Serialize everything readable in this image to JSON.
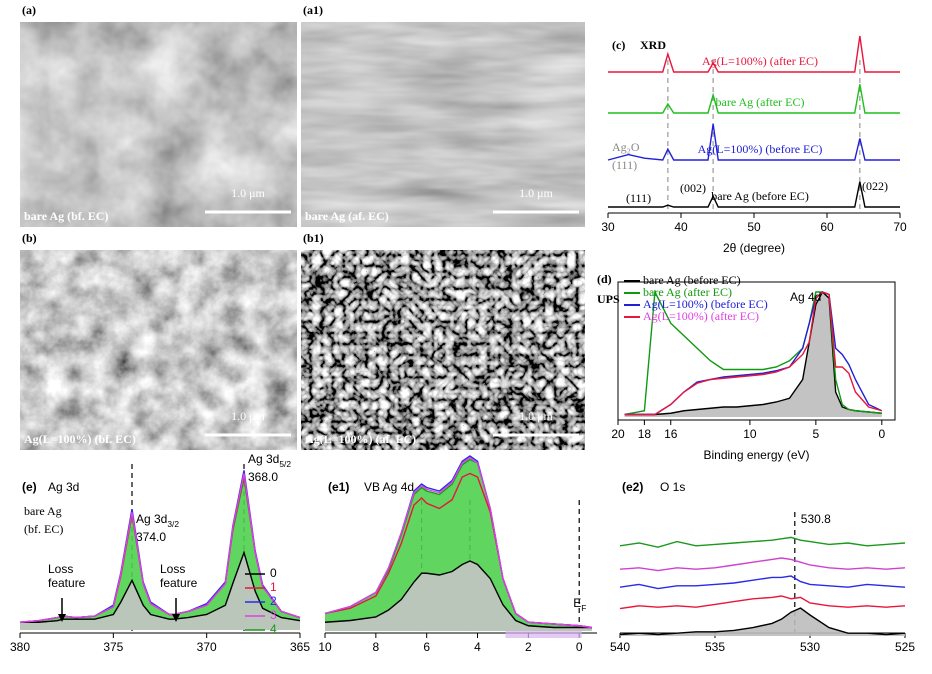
{
  "images": [
    {
      "label": "(a)",
      "caption": "bare Ag (bf. EC)",
      "scale": "1.0 μm"
    },
    {
      "label": "(a1)",
      "caption": "bare Ag (af. EC)",
      "scale": "1.0 μm"
    },
    {
      "label": "(b)",
      "caption": "Ag(L=100%) (bf. EC)",
      "scale": "1.0 μm"
    },
    {
      "label": "(b1)",
      "caption": "Ag(L=100%) (af. EC)",
      "scale": "1.0 μm"
    }
  ],
  "chart_data": [
    {
      "type": "line",
      "panel": "(c)",
      "title": "XRD",
      "xlabel": "2θ (degree)",
      "x": [
        30,
        32.8,
        35,
        37.5,
        38.2,
        39,
        43.7,
        44.4,
        45.1,
        50,
        60,
        63.8,
        64.5,
        65.2,
        70
      ],
      "xlim": [
        30,
        70
      ],
      "xticks": [
        30,
        40,
        50,
        60,
        70
      ],
      "guides": [
        38.2,
        44.4,
        64.5
      ],
      "annotations": [
        "Ag₂O",
        "(111)",
        "(111)",
        "(002)",
        "(022)"
      ],
      "series": [
        {
          "name": "Ag(L=100%) (after EC)",
          "color": "#e8163c",
          "values": [
            0,
            0,
            0,
            0,
            0.5,
            0,
            0,
            0.25,
            0,
            0,
            0,
            0,
            1,
            0,
            0
          ]
        },
        {
          "name": "bare Ag (after EC)",
          "color": "#1fbf1f",
          "values": [
            0,
            0,
            0,
            0,
            0.25,
            0,
            0,
            0.5,
            0,
            0,
            0,
            0,
            0.8,
            0,
            0
          ]
        },
        {
          "name": "Ag(L=100%) (before EC)",
          "color": "#2020d8",
          "values": [
            0,
            0.15,
            0.05,
            0,
            0.3,
            0,
            0,
            1,
            0,
            0,
            0,
            0,
            0.6,
            0,
            0
          ]
        },
        {
          "name": "bare Ag (before EC)",
          "color": "#000000",
          "values": [
            0,
            0,
            0,
            0,
            0.05,
            0,
            0,
            0.3,
            0,
            0,
            0,
            0,
            0.7,
            0,
            0
          ]
        }
      ]
    },
    {
      "type": "line",
      "panel": "(d)",
      "title": "UPS",
      "xlabel": "Binding energy (eV)",
      "annotations": [
        "Ag 4d"
      ],
      "x": [
        19.5,
        18,
        17.2,
        16,
        15,
        14,
        13,
        12,
        11,
        10,
        9,
        8,
        7,
        6,
        5.5,
        5,
        4.5,
        4,
        3.5,
        3,
        2.5,
        2,
        1,
        0
      ],
      "xlim": [
        20,
        -1
      ],
      "xticks": [
        20,
        18,
        16,
        10,
        5,
        0
      ],
      "series": [
        {
          "name": "bare Ag (before EC)",
          "color": "#000000",
          "fill": "#bdbdbd",
          "values": [
            0.02,
            0.02,
            0.02,
            0.03,
            0.05,
            0.06,
            0.07,
            0.08,
            0.08,
            0.09,
            0.1,
            0.12,
            0.15,
            0.3,
            0.6,
            0.9,
            1.0,
            0.95,
            0.2,
            0.08,
            0.06,
            0.05,
            0.04,
            0.03
          ]
        },
        {
          "name": "bare Ag (after EC)",
          "color": "#119911",
          "values": [
            0.02,
            0.05,
            1.0,
            0.75,
            0.65,
            0.55,
            0.45,
            0.38,
            0.38,
            0.38,
            0.38,
            0.4,
            0.45,
            0.55,
            0.75,
            1.0,
            1.0,
            0.98,
            0.3,
            0.1,
            0.06,
            0.05,
            0.04,
            0.03
          ]
        },
        {
          "name": "Ag(L=100%) (before EC)",
          "color": "#2020d8",
          "values": [
            0.02,
            0.02,
            0.02,
            0.1,
            0.2,
            0.28,
            0.3,
            0.32,
            0.33,
            0.34,
            0.35,
            0.37,
            0.4,
            0.55,
            0.75,
            0.95,
            1.0,
            0.98,
            0.55,
            0.5,
            0.42,
            0.3,
            0.1,
            0.05
          ]
        },
        {
          "name": "Ag(L=100%) (after EC)",
          "color": "#e8163c",
          "values": [
            0.02,
            0.02,
            0.02,
            0.1,
            0.2,
            0.27,
            0.3,
            0.31,
            0.32,
            0.33,
            0.34,
            0.36,
            0.4,
            0.5,
            0.6,
            0.95,
            1.0,
            0.98,
            0.4,
            0.4,
            0.35,
            0.2,
            0.08,
            0.05
          ]
        }
      ]
    },
    {
      "type": "line",
      "panel": "(e)",
      "title": "Ag 3d",
      "annotations": [
        "bare Ag",
        "(bf. EC)",
        "Loss\nfeature",
        "Loss\nfeature"
      ],
      "peaks": [
        {
          "name": {
            "text": "Ag 3d",
            "sub": "3/2"
          },
          "value": {
            "value": 374,
            "label": "374.0"
          }
        },
        {
          "name": {
            "text": "Ag 3d",
            "sub": "5/2"
          },
          "value": {
            "value": 368,
            "label": "368.0"
          }
        }
      ],
      "x": [
        380,
        379,
        378,
        377.7,
        377,
        376,
        375,
        374.6,
        374,
        373.4,
        373,
        372,
        371.8,
        371,
        370,
        369,
        368.6,
        368,
        367.4,
        367,
        366,
        365
      ],
      "xlim": [
        380,
        365
      ],
      "xticks": [
        380,
        375,
        370,
        365
      ],
      "series": [
        {
          "name": "4",
          "color": "#1a9a1a",
          "fill": "#4fd04f",
          "values": [
            0.05,
            0.06,
            0.08,
            0.09,
            0.08,
            0.09,
            0.15,
            0.35,
            0.74,
            0.3,
            0.17,
            0.1,
            0.1,
            0.12,
            0.16,
            0.3,
            0.64,
            0.98,
            0.5,
            0.28,
            0.12,
            0.08
          ]
        },
        {
          "name": "0",
          "color": "#000000",
          "fill": "#c4c4c4",
          "values": [
            0.05,
            0.05,
            0.06,
            0.07,
            0.07,
            0.07,
            0.1,
            0.18,
            0.32,
            0.16,
            0.1,
            0.07,
            0.07,
            0.08,
            0.1,
            0.16,
            0.3,
            0.5,
            0.25,
            0.14,
            0.08,
            0.06
          ]
        },
        {
          "name": "1",
          "color": "#e8163c",
          "values": [
            0.05,
            0.06,
            0.08,
            0.09,
            0.08,
            0.09,
            0.15,
            0.35,
            0.75,
            0.3,
            0.17,
            0.1,
            0.1,
            0.12,
            0.16,
            0.3,
            0.65,
            1.0,
            0.5,
            0.28,
            0.12,
            0.08
          ]
        },
        {
          "name": "2",
          "color": "#2a2ae8",
          "values": [
            0.05,
            0.06,
            0.08,
            0.09,
            0.08,
            0.09,
            0.16,
            0.37,
            0.78,
            0.31,
            0.18,
            0.1,
            0.1,
            0.12,
            0.17,
            0.31,
            0.67,
            1.03,
            0.51,
            0.29,
            0.12,
            0.08
          ]
        },
        {
          "name": "3",
          "color": "#e040e0",
          "values": [
            0.05,
            0.06,
            0.08,
            0.09,
            0.08,
            0.09,
            0.15,
            0.36,
            0.76,
            0.3,
            0.17,
            0.1,
            0.1,
            0.12,
            0.16,
            0.3,
            0.66,
            1.01,
            0.5,
            0.28,
            0.12,
            0.08
          ]
        }
      ]
    },
    {
      "type": "line",
      "panel": "(e1)",
      "title": "VB  Ag 4d",
      "edge": {
        "text": "E",
        "sub": "F"
      },
      "x": [
        10,
        9,
        8,
        7.5,
        7,
        6.5,
        6.2,
        6,
        5.5,
        5,
        4.6,
        4.3,
        4,
        3.5,
        3,
        2.5,
        2,
        1,
        0,
        -0.5
      ],
      "xlim": [
        10,
        -0.7
      ],
      "xticks": [
        10,
        8,
        6,
        4,
        2,
        0
      ],
      "guides": [
        6.2,
        4.3,
        0
      ],
      "series": [
        {
          "color": "#1a9a1a",
          "fill": "#4fd04f",
          "values": [
            0.1,
            0.14,
            0.22,
            0.35,
            0.55,
            0.78,
            0.82,
            0.8,
            0.78,
            0.84,
            0.95,
            0.98,
            0.96,
            0.7,
            0.3,
            0.1,
            0.05,
            0.04,
            0.03,
            0.02
          ]
        },
        {
          "color": "#000000",
          "fill": "#c4c4c4",
          "values": [
            0.05,
            0.06,
            0.08,
            0.12,
            0.18,
            0.28,
            0.33,
            0.33,
            0.32,
            0.34,
            0.38,
            0.4,
            0.38,
            0.3,
            0.15,
            0.06,
            0.03,
            0.02,
            0.02,
            0.02
          ]
        },
        {
          "color": "#e8163c",
          "values": [
            0.1,
            0.13,
            0.2,
            0.33,
            0.5,
            0.72,
            0.76,
            0.73,
            0.7,
            0.75,
            0.88,
            0.9,
            0.88,
            0.68,
            0.3,
            0.1,
            0.05,
            0.04,
            0.03,
            0.02
          ]
        },
        {
          "color": "#2a2ae8",
          "values": [
            0.1,
            0.14,
            0.22,
            0.36,
            0.56,
            0.8,
            0.84,
            0.82,
            0.8,
            0.86,
            0.97,
            1.0,
            0.97,
            0.7,
            0.3,
            0.1,
            0.05,
            0.04,
            0.03,
            0.02
          ]
        },
        {
          "color": "#e040e0",
          "values": [
            0.1,
            0.14,
            0.22,
            0.36,
            0.56,
            0.79,
            0.83,
            0.81,
            0.79,
            0.85,
            0.96,
            0.99,
            0.96,
            0.7,
            0.3,
            0.1,
            0.05,
            0.04,
            0.03,
            0.02
          ]
        }
      ]
    },
    {
      "type": "line",
      "panel": "(e2)",
      "title": "O 1s",
      "peak": 530.8,
      "x": [
        540,
        539,
        538,
        537,
        536,
        535,
        534,
        533,
        532,
        531.5,
        531,
        530.5,
        530,
        529,
        528,
        527,
        526,
        525
      ],
      "xlim": [
        540,
        525
      ],
      "xticks": [
        540,
        535,
        530,
        525
      ],
      "series": [
        {
          "color": "#1a9a1a",
          "values": [
            0.3,
            0.5,
            0.2,
            0.6,
            0.3,
            0.4,
            0.5,
            0.6,
            0.7,
            0.8,
            0.9,
            0.7,
            0.6,
            0.4,
            0.5,
            0.3,
            0.4,
            0.5
          ]
        },
        {
          "color": "#d040d0",
          "values": [
            0.2,
            0.3,
            0.1,
            0.3,
            0.2,
            0.3,
            0.5,
            0.7,
            0.9,
            1.0,
            0.9,
            0.7,
            0.5,
            0.3,
            0.2,
            0.3,
            0.2,
            0.3
          ]
        },
        {
          "color": "#2a2ae8",
          "values": [
            0.2,
            0.4,
            0.1,
            0.3,
            0.3,
            0.4,
            0.5,
            0.7,
            0.9,
            0.9,
            1.0,
            0.6,
            0.4,
            0.3,
            0.2,
            0.4,
            0.3,
            0.2
          ]
        },
        {
          "color": "#e8163c",
          "values": [
            0.1,
            0.3,
            0.2,
            0.3,
            0.2,
            0.4,
            0.6,
            0.8,
            0.9,
            1.0,
            0.8,
            0.9,
            0.5,
            0.3,
            0.2,
            0.3,
            0.2,
            0.3
          ]
        },
        {
          "color": "#000000",
          "fill": "#bdbdbd",
          "values": [
            0.1,
            0.2,
            0.1,
            0.2,
            0.3,
            0.3,
            0.4,
            0.6,
            0.9,
            1.2,
            1.7,
            2.0,
            1.5,
            0.6,
            0.2,
            0.2,
            0.1,
            0.2
          ]
        }
      ]
    }
  ]
}
